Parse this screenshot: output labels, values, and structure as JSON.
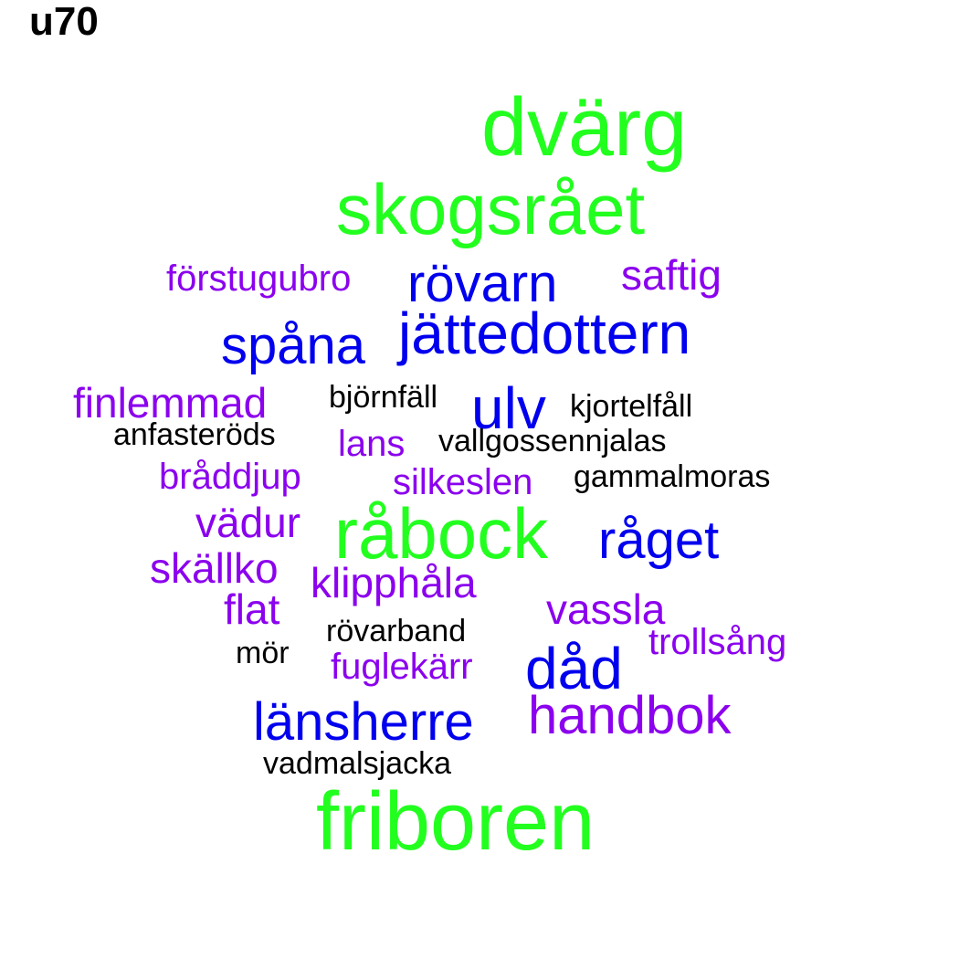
{
  "title": "u70",
  "colors": {
    "green": "#22ff1f",
    "blue": "#0000ee",
    "purple": "#8b00ee",
    "black": "#000000"
  },
  "words": {
    "dvarg": {
      "text": "dvärg",
      "color": "green"
    },
    "skogsraet": {
      "text": "skogsrået",
      "color": "green"
    },
    "friboren": {
      "text": "friboren",
      "color": "green"
    },
    "rabock": {
      "text": "råbock",
      "color": "green"
    },
    "jattedottern": {
      "text": "jättedottern",
      "color": "blue"
    },
    "rovarn": {
      "text": "rövarn",
      "color": "blue"
    },
    "spana": {
      "text": "spåna",
      "color": "blue"
    },
    "ulv": {
      "text": "ulv",
      "color": "blue"
    },
    "raget": {
      "text": "råget",
      "color": "blue"
    },
    "dad": {
      "text": "dåd",
      "color": "blue"
    },
    "lansherre": {
      "text": "länsherre",
      "color": "blue"
    },
    "saftig": {
      "text": "saftig",
      "color": "purple"
    },
    "forstugubro": {
      "text": "förstugubro",
      "color": "purple"
    },
    "finlemmad": {
      "text": "finlemmad",
      "color": "purple"
    },
    "lans": {
      "text": "lans",
      "color": "purple"
    },
    "braddjup": {
      "text": "bråddjup",
      "color": "purple"
    },
    "silkeslen": {
      "text": "silkeslen",
      "color": "purple"
    },
    "vadur": {
      "text": "vädur",
      "color": "purple"
    },
    "skallko": {
      "text": "skällko",
      "color": "purple"
    },
    "klipphala": {
      "text": "klipphåla",
      "color": "purple"
    },
    "flat": {
      "text": "flat",
      "color": "purple"
    },
    "vassla": {
      "text": "vassla",
      "color": "purple"
    },
    "trollsang": {
      "text": "trollsång",
      "color": "purple"
    },
    "fuglekarr": {
      "text": "fuglekärr",
      "color": "purple"
    },
    "handbok": {
      "text": "handbok",
      "color": "purple"
    },
    "bjornfall": {
      "text": "björnfäll",
      "color": "black"
    },
    "kjortelfall": {
      "text": "kjortelfåll",
      "color": "black"
    },
    "anfasterods": {
      "text": "anfasteröds",
      "color": "black"
    },
    "vallgossennjalas": {
      "text": "vallgossennjalas",
      "color": "black"
    },
    "gammalmoras": {
      "text": "gammalmoras",
      "color": "black"
    },
    "rovarband": {
      "text": "rövarband",
      "color": "black"
    },
    "mor": {
      "text": "mör",
      "color": "black"
    },
    "vadmalsjacka": {
      "text": "vadmalsjacka",
      "color": "black"
    }
  }
}
